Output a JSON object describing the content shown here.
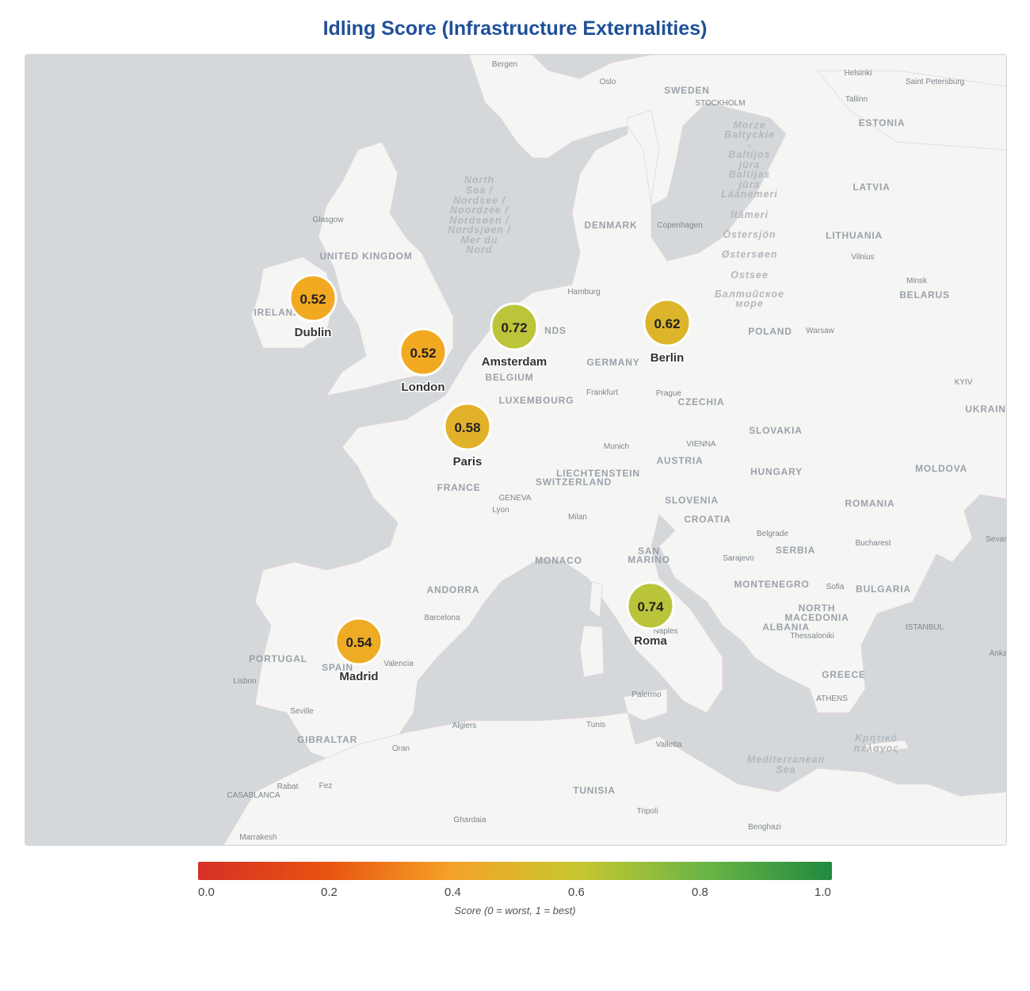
{
  "title": "Idling Score (Infrastructure Externalities)",
  "legend": {
    "ticks": [
      "0.0",
      "0.2",
      "0.4",
      "0.6",
      "0.8",
      "1.0"
    ],
    "caption": "Score (0 = worst, 1 = best)"
  },
  "cities": [
    {
      "name": "Dublin",
      "score": "0.52",
      "color": "#f2a922"
    },
    {
      "name": "London",
      "score": "0.52",
      "color": "#f2a922"
    },
    {
      "name": "Amsterdam",
      "score": "0.72",
      "color": "#bcc43a"
    },
    {
      "name": "Berlin",
      "score": "0.62",
      "color": "#dcb52b"
    },
    {
      "name": "Paris",
      "score": "0.58",
      "color": "#e2b12a"
    },
    {
      "name": "Madrid",
      "score": "0.54",
      "color": "#eeac25"
    },
    {
      "name": "Roma",
      "score": "0.74",
      "color": "#b9c43a"
    }
  ],
  "map_labels": {
    "countries": [
      "SWEDEN",
      "ESTONIA",
      "LATVIA",
      "LITHUANIA",
      "BELARUS",
      "DENMARK",
      "UNITED KINGDOM",
      "IRELAND",
      "BELGIUM",
      "GERMANY",
      "POLAND",
      "LUXEMBOURG",
      "CZECHIA",
      "SLOVAKIA",
      "AUSTRIA",
      "LIECHTENSTEIN",
      "SWITZERLAND",
      "HUNGARY",
      "MOLDOVA",
      "UKRAIN",
      "FRANCE",
      "SLOVENIA",
      "CROATIA",
      "ROMANIA",
      "SERBIA",
      "MONACO",
      "SAN",
      "MARINO",
      "MONTENEGRO",
      "BULGARIA",
      "NORTH",
      "MACEDONIA",
      "ALBANIA",
      "ANDORRA",
      "PORTUGAL",
      "SPAIN",
      "GREECE",
      "GIBRALTAR",
      "TUNISIA",
      "NDS"
    ],
    "cities": [
      "Bergen",
      "Oslo",
      "STOCKHOLM",
      "Helsinki",
      "Saint Petersburg",
      "Tallinn",
      "Glasgow",
      "Copenhagen",
      "Hamburg",
      "Vilnius",
      "Minsk",
      "Warsaw",
      "Frankfurt",
      "Prague",
      "KYIV",
      "Munich",
      "VIENNA",
      "GENEVA",
      "Lyon",
      "Milan",
      "Belgrade",
      "Bucharest",
      "Sarajevo",
      "Sofia",
      "ISTANBUL",
      "Thessaloniki",
      "Barcelona",
      "Valencia",
      "Lisbon",
      "Seville",
      "Naples",
      "Palermo",
      "Tunis",
      "Algiers",
      "Oran",
      "Valletta",
      "ATHENS",
      "Rabat",
      "Fez",
      "CASABLANCA",
      "Ghardaia",
      "Tripoli",
      "Benghazi",
      "Marrakesh",
      "Sevas",
      "Anka"
    ],
    "seas": [
      "North",
      "Sea /",
      "Nordsee /",
      "Noordzee /",
      "Nordsøen /",
      "Nordsjøen /",
      "Mer du",
      "Nord",
      "Morze",
      "Bałtyckie",
      "-",
      "Baltijos",
      "jūra",
      "Baltijas",
      "jūra",
      "Läänemeri",
      "Itämeri",
      "Östersjön",
      "Østersøen",
      "Ostsee",
      "Балтийское",
      "море",
      "Mediterranean",
      "Sea",
      "Κρητικό",
      "πέλαγος"
    ]
  }
}
